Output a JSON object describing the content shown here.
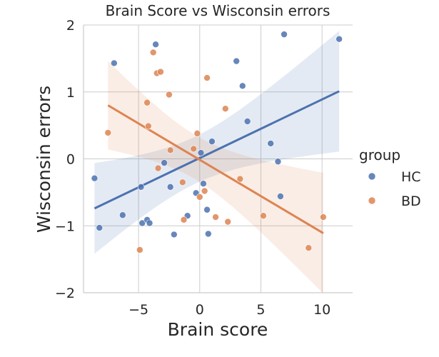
{
  "chart_data": {
    "type": "scatter",
    "title": "Brain Score vs Wisconsin errors",
    "xlabel": "Brain score",
    "ylabel": "Wisconsin errors",
    "xlim": [
      -9.5,
      12.5
    ],
    "ylim": [
      -2,
      2
    ],
    "xticks": [
      -5,
      0,
      5,
      10
    ],
    "yticks": [
      -2,
      -1,
      0,
      1,
      2
    ],
    "xtick_labels": [
      "−5",
      "0",
      "5",
      "10"
    ],
    "ytick_labels": [
      "−2",
      "−1",
      "0",
      "1",
      "2"
    ],
    "grid": true,
    "legend": {
      "title": "group",
      "placement": "right"
    },
    "series": [
      {
        "name": "HC",
        "color": "#4c72b0",
        "points": [
          [
            -8.6,
            -0.29
          ],
          [
            -8.2,
            -1.03
          ],
          [
            -7.0,
            1.43
          ],
          [
            -6.3,
            -0.84
          ],
          [
            -4.8,
            -0.42
          ],
          [
            -4.7,
            -0.96
          ],
          [
            -4.3,
            -0.91
          ],
          [
            -4.1,
            -0.96
          ],
          [
            -3.6,
            1.71
          ],
          [
            -2.9,
            -0.06
          ],
          [
            -2.4,
            -0.42
          ],
          [
            -2.1,
            -1.13
          ],
          [
            -1.0,
            -0.85
          ],
          [
            -0.3,
            -0.51
          ],
          [
            0.1,
            0.09
          ],
          [
            0.3,
            -0.37
          ],
          [
            0.6,
            -0.76
          ],
          [
            0.7,
            -1.12
          ],
          [
            1.0,
            0.26
          ],
          [
            3.0,
            1.46
          ],
          [
            3.5,
            1.09
          ],
          [
            3.9,
            0.56
          ],
          [
            5.8,
            0.23
          ],
          [
            6.4,
            -0.04
          ],
          [
            6.6,
            -0.56
          ],
          [
            6.9,
            1.86
          ],
          [
            11.4,
            1.79
          ]
        ],
        "fit": {
          "x": [
            -8.6,
            11.4
          ],
          "y": [
            -0.74,
            1.01
          ]
        }
      },
      {
        "name": "BD",
        "color": "#dd8452",
        "points": [
          [
            -7.5,
            0.39
          ],
          [
            -4.9,
            -1.36
          ],
          [
            -4.3,
            0.84
          ],
          [
            -4.2,
            0.49
          ],
          [
            -3.8,
            1.59
          ],
          [
            -3.5,
            1.28
          ],
          [
            -3.4,
            -0.14
          ],
          [
            -3.2,
            1.3
          ],
          [
            -2.5,
            0.96
          ],
          [
            -2.4,
            0.13
          ],
          [
            -1.4,
            -0.35
          ],
          [
            -1.3,
            -0.91
          ],
          [
            -0.5,
            0.15
          ],
          [
            -0.2,
            0.38
          ],
          [
            0.0,
            -0.57
          ],
          [
            0.4,
            -0.48
          ],
          [
            0.6,
            1.21
          ],
          [
            1.3,
            -0.87
          ],
          [
            2.1,
            0.75
          ],
          [
            2.3,
            -0.94
          ],
          [
            3.3,
            -0.3
          ],
          [
            5.2,
            -0.85
          ],
          [
            8.9,
            -1.33
          ],
          [
            10.1,
            -0.87
          ]
        ],
        "fit": {
          "x": [
            -7.5,
            10.1
          ],
          "y": [
            0.8,
            -1.11
          ]
        }
      }
    ]
  }
}
